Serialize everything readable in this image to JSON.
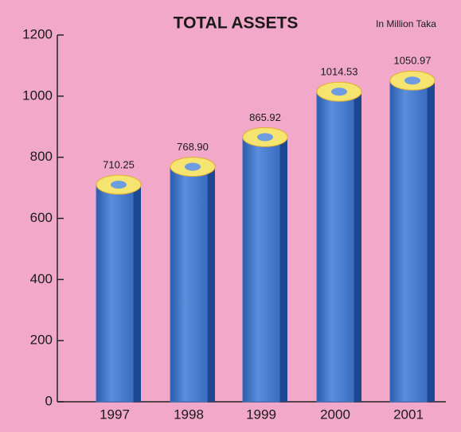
{
  "chart_data": {
    "type": "bar",
    "title": "TOTAL ASSETS",
    "subtitle": "In Million Taka",
    "categories": [
      "1997",
      "1998",
      "1999",
      "2000",
      "2001"
    ],
    "values": [
      710.25,
      768.9,
      865.92,
      1014.53,
      1050.97
    ],
    "value_labels": [
      "710.25",
      "768.90",
      "865.92",
      "1014.53",
      "1050.97"
    ],
    "color": "#3d72c4",
    "ylim": [
      0,
      1200
    ],
    "yticks": [
      0,
      200,
      400,
      600,
      800,
      1000,
      1200
    ]
  }
}
